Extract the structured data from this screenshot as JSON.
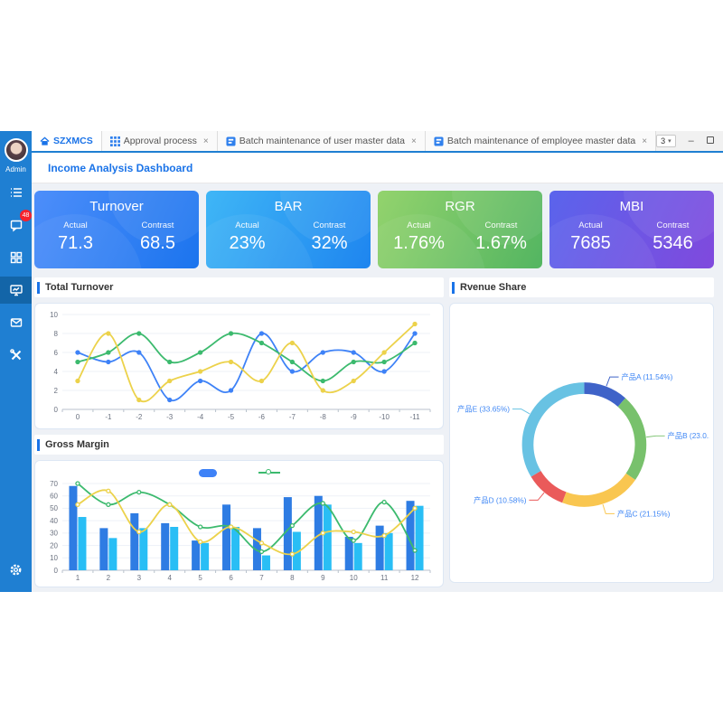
{
  "ui": {
    "close_glyph": "×",
    "dropdown_value": "3",
    "dropdown_arrow": "▾",
    "minimize_glyph": "–",
    "close_window_glyph": "✕"
  },
  "tabs": [
    {
      "label": "SZXMCS",
      "icon": "home-icon",
      "active": true,
      "closable": false
    },
    {
      "label": "Approval process",
      "icon": "grid-icon",
      "active": false,
      "closable": true
    },
    {
      "label": "Batch maintenance of user master data",
      "icon": "app-icon",
      "active": false,
      "closable": true
    },
    {
      "label": "Batch maintenance of employee master data",
      "icon": "app-icon",
      "active": false,
      "closable": true
    }
  ],
  "sidebar": {
    "user": "Admin",
    "badge_count": "48",
    "items": [
      {
        "icon": "menu-list-icon"
      },
      {
        "icon": "chat-icon"
      },
      {
        "icon": "dashboard-grid-icon"
      },
      {
        "icon": "monitor-icon",
        "active": true
      },
      {
        "icon": "mail-icon"
      },
      {
        "icon": "tools-icon"
      }
    ],
    "settings_icon": "gear-icon"
  },
  "breadcrumb": "Income Analysis Dashboard",
  "kpi_cards": [
    {
      "title": "Turnover",
      "actual_label": "Actual",
      "contrast_label": "Contrast",
      "actual": "71.3",
      "contrast": "68.5",
      "gradient": [
        "#4d8efa",
        "#1b74ee"
      ]
    },
    {
      "title": "BAR",
      "actual_label": "Actual",
      "contrast_label": "Contrast",
      "actual": "23%",
      "contrast": "32%",
      "gradient": [
        "#3fb6f6",
        "#1e85ef"
      ]
    },
    {
      "title": "RGR",
      "actual_label": "Actual",
      "contrast_label": "Contrast",
      "actual": "1.76%",
      "contrast": "1.67%",
      "gradient": [
        "#93d36d",
        "#53b561"
      ]
    },
    {
      "title": "MBI",
      "actual_label": "Actual",
      "contrast_label": "Contrast",
      "actual": "7685",
      "contrast": "5346",
      "gradient": [
        "#5a64ec",
        "#8049dd"
      ]
    }
  ],
  "panels": {
    "turnover_title": "Total Turnover",
    "margin_title": "Gross Margin",
    "share_title": "Rvenue Share"
  },
  "chart_data": [
    {
      "type": "line",
      "title": "Total Turnover",
      "categories": [
        "0",
        "-1",
        "-2",
        "-3",
        "-4",
        "-5",
        "-6",
        "-7",
        "-8",
        "-9",
        "-10",
        "-11"
      ],
      "series": [
        {
          "name": "series-blue",
          "color": "#3e82f7",
          "values": [
            6,
            5,
            6,
            1,
            3,
            2,
            8,
            4,
            6,
            6,
            4,
            8
          ]
        },
        {
          "name": "series-green",
          "color": "#3cba6e",
          "values": [
            5,
            6,
            8,
            5,
            6,
            8,
            7,
            5,
            3,
            5,
            5,
            7
          ]
        },
        {
          "name": "series-yellow",
          "color": "#ecd24b",
          "values": [
            3,
            8,
            1,
            3,
            4,
            5,
            3,
            7,
            2,
            3,
            6,
            9
          ]
        }
      ],
      "ylim": [
        0,
        10
      ],
      "yticks": [
        0,
        2,
        4,
        6,
        8,
        10
      ],
      "smooth": true,
      "grid": true,
      "legend_position": "none"
    },
    {
      "type": "bar",
      "title": "Gross Margin",
      "categories": [
        "1",
        "2",
        "3",
        "4",
        "5",
        "6",
        "7",
        "8",
        "9",
        "10",
        "11",
        "12"
      ],
      "series": [
        {
          "name": "bar-dark-blue",
          "kind": "bar",
          "color": "#2e7ce3",
          "values": [
            68,
            34,
            46,
            38,
            24,
            53,
            34,
            59,
            60,
            27,
            36,
            56
          ]
        },
        {
          "name": "bar-light-blue",
          "kind": "bar",
          "color": "#29bef5",
          "values": [
            43,
            26,
            34,
            35,
            22,
            35,
            12,
            31,
            53,
            22,
            30,
            52
          ]
        },
        {
          "name": "line-green",
          "kind": "line",
          "color": "#3cba6e",
          "values": [
            70,
            53,
            63,
            53,
            35,
            35,
            15,
            36,
            54,
            24,
            55,
            16
          ]
        },
        {
          "name": "line-yellow",
          "kind": "line",
          "color": "#ecd24b",
          "values": [
            53,
            64,
            31,
            53,
            23,
            35,
            22,
            13,
            30,
            31,
            28,
            50
          ]
        }
      ],
      "ylim": [
        0,
        70
      ],
      "yticks": [
        0,
        10,
        20,
        30,
        40,
        50,
        60,
        70
      ],
      "grid": true,
      "legend_position": "top-center"
    },
    {
      "type": "pie",
      "title": "Rvenue Share",
      "donut": true,
      "label_color": "#3f87f5",
      "slices": [
        {
          "label": "产品A (11.54%)",
          "value": 11.54,
          "color": "#3f63c8"
        },
        {
          "label": "产品B (23.0...",
          "value": 23.08,
          "color": "#78c16c"
        },
        {
          "label": "产品C (21.15%)",
          "value": 21.15,
          "color": "#f9c650"
        },
        {
          "label": "产品D (10.58%)",
          "value": 10.58,
          "color": "#ea5a5a"
        },
        {
          "label": "产品E (33.65%)",
          "value": 33.65,
          "color": "#68c2e3"
        }
      ]
    }
  ]
}
